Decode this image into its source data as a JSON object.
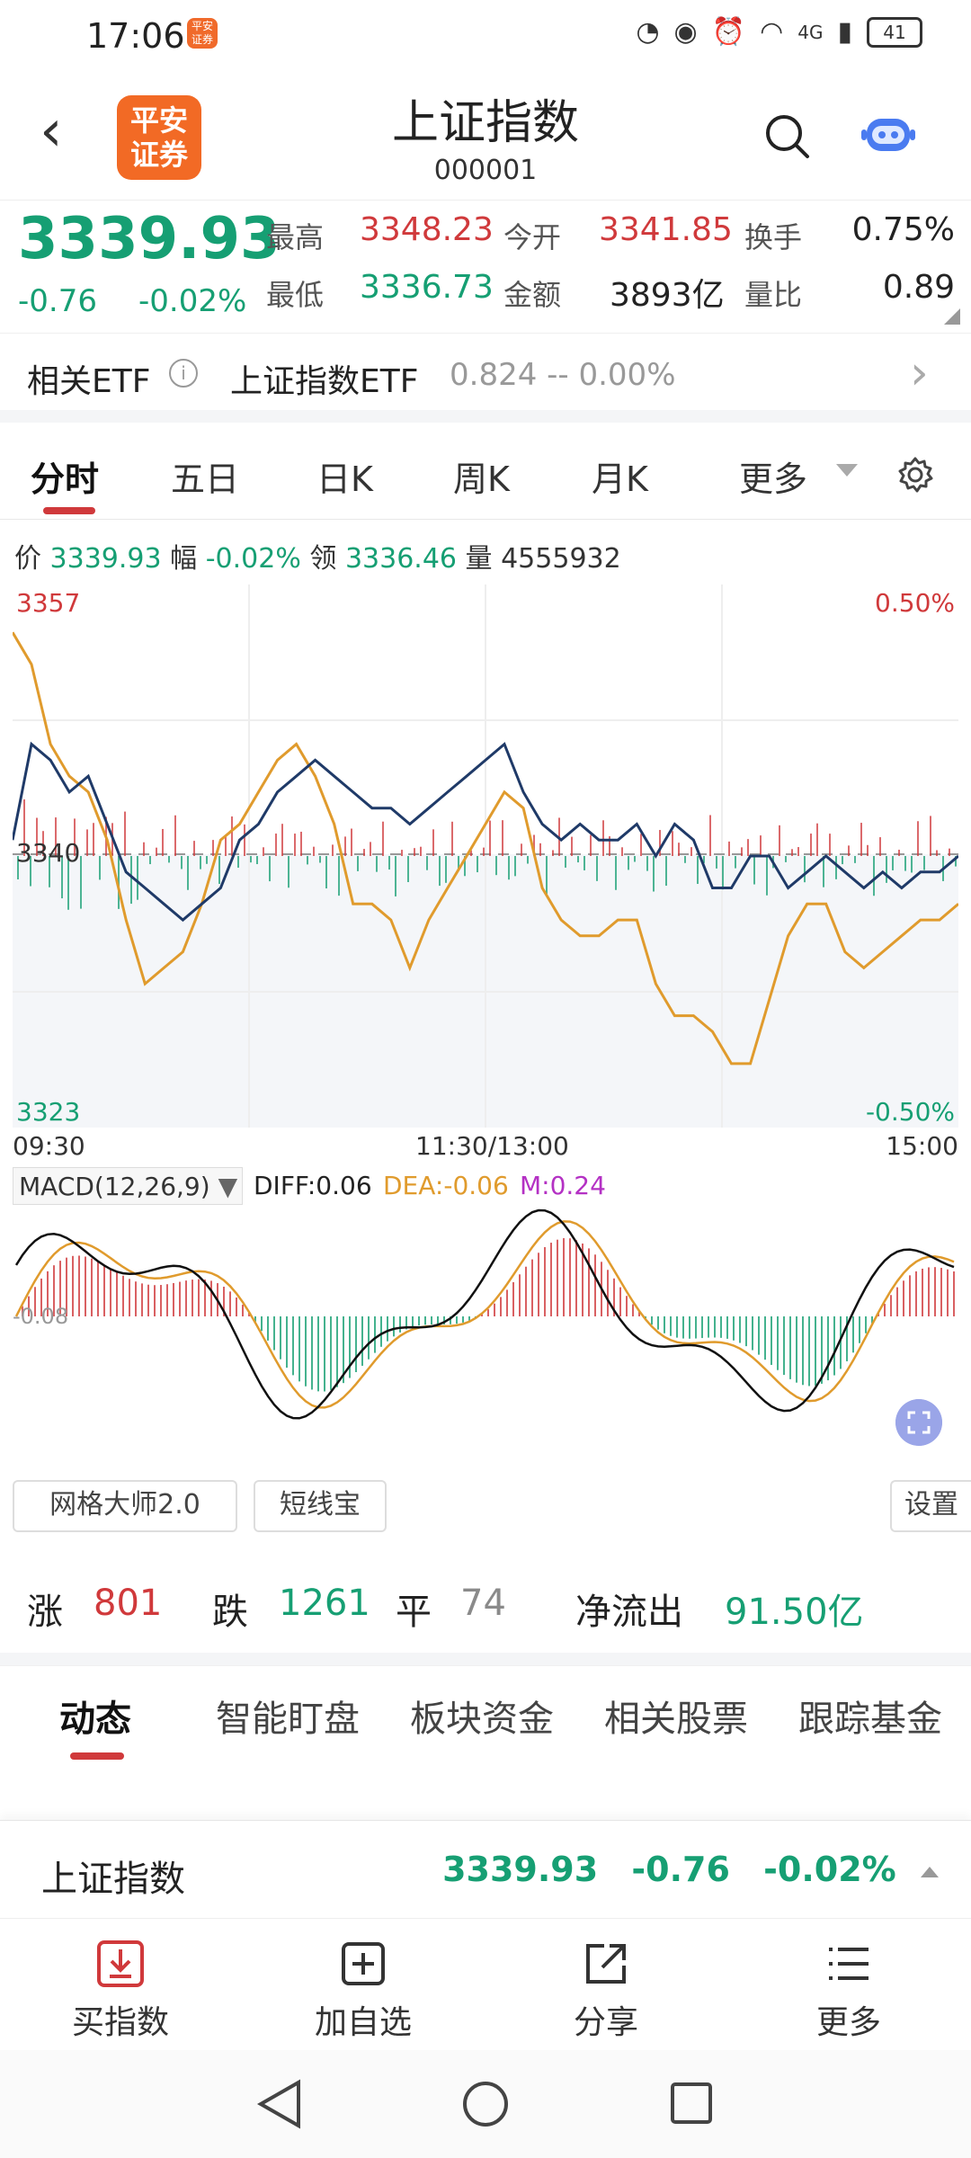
{
  "status_bar": {
    "time": "17:06",
    "app_badge": "平安\n证券",
    "network": "4G",
    "battery": "41"
  },
  "header": {
    "title": "上证指数",
    "code": "000001",
    "logo_text": "平安\n证券"
  },
  "quote": {
    "price": "3339.93",
    "change": "-0.76",
    "change_pct": "-0.02%",
    "high_label": "最高",
    "high": "3348.23",
    "low_label": "最低",
    "low": "3336.73",
    "open_label": "今开",
    "open": "3341.85",
    "amount_label": "金额",
    "amount": "3893亿",
    "turnover_label": "换手",
    "turnover": "0.75%",
    "vol_ratio_label": "量比",
    "vol_ratio": "0.89"
  },
  "etf": {
    "label": "相关ETF",
    "name": "上证指数ETF",
    "value": "0.824  --  0.00%"
  },
  "chart_tabs": [
    "分时",
    "五日",
    "日K",
    "周K",
    "月K",
    "更多"
  ],
  "info_line": {
    "price_label": "价",
    "price": "3339.93",
    "amp_label": "幅",
    "amp": "-0.02%",
    "lead_label": "领",
    "lead": "3336.46",
    "vol_label": "量",
    "vol": "4555932"
  },
  "axis": {
    "y_top": "3357",
    "y_mid": "3340",
    "y_bottom": "3323",
    "pct_top": "0.50%",
    "pct_bottom": "-0.50%",
    "t_start": "09:30",
    "t_mid": "11:30/13:00",
    "t_end": "15:00"
  },
  "macd": {
    "selector": "MACD(12,26,9)",
    "diff": "DIFF:0.06",
    "dea": "DEA:-0.06",
    "m": "M:0.24",
    "zero_label": "-0.08"
  },
  "tools": [
    "网格大师2.0",
    "短线宝",
    "设置"
  ],
  "breadth": {
    "up_label": "涨",
    "up": "801",
    "down_label": "跌",
    "down": "1261",
    "flat_label": "平",
    "flat": "74",
    "flow_label": "净流出",
    "flow": "91.50亿"
  },
  "news_tabs": [
    "动态",
    "智能盯盘",
    "板块资金",
    "相关股票",
    "跟踪基金"
  ],
  "sticky": {
    "name": "上证指数",
    "price": "3339.93",
    "change": "-0.76",
    "pct": "-0.02%"
  },
  "actions": [
    {
      "label": "买指数",
      "icon": "download-box-icon"
    },
    {
      "label": "加自选",
      "icon": "plus-box-icon"
    },
    {
      "label": "分享",
      "icon": "share-icon"
    },
    {
      "label": "更多",
      "icon": "list-icon"
    }
  ],
  "colors": {
    "up": "#d0393b",
    "down": "#169f73",
    "index_line": "#1f3a68",
    "avg_line": "#e09b2d",
    "accent": "#f26a25"
  },
  "chart_data": {
    "type": "line",
    "x_range": [
      "09:30",
      "15:00"
    ],
    "y_range": [
      3323,
      3357
    ],
    "prev_close": 3340,
    "series": [
      {
        "name": "",
        "color": "#1f3a68",
        "values": [
          3341,
          3347,
          3346,
          3344,
          3345,
          3342,
          3339,
          3338,
          3337,
          3336,
          3337,
          3338,
          3341,
          3342,
          3344,
          3345,
          3346,
          3345,
          3344,
          3343,
          3343,
          3342,
          3343,
          3344,
          3345,
          3346,
          3347,
          3344,
          3342,
          3341,
          3342,
          3341,
          3341,
          3342,
          3340,
          3342,
          3341,
          3338,
          3338,
          3340,
          3340,
          3338,
          3339,
          3340,
          3339,
          3338,
          3339,
          3338,
          3339,
          3339,
          3340
        ]
      },
      {
        "name": "",
        "color": "#e09b2d",
        "values": [
          3354,
          3352,
          3347,
          3345,
          3344,
          3341,
          3336,
          3332,
          3333,
          3334,
          3337,
          3341,
          3342,
          3344,
          3346,
          3347,
          3345,
          3342,
          3337,
          3337,
          3336,
          3333,
          3336,
          3338,
          3340,
          3342,
          3344,
          3343,
          3338,
          3336,
          3335,
          3335,
          3336,
          3336,
          3332,
          3330,
          3330,
          3329,
          3327,
          3327,
          3331,
          3335,
          3337,
          3337,
          3334,
          3333,
          3334,
          3335,
          3336,
          3336,
          3337
        ]
      }
    ]
  }
}
